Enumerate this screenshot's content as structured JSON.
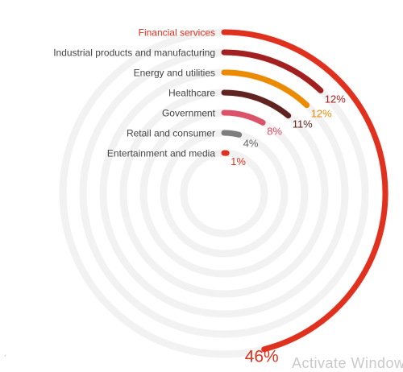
{
  "chart_data": {
    "type": "radial-bar",
    "scale_max": 100,
    "grid": true,
    "series": [
      {
        "name": "Financial services",
        "value": 46,
        "label": "46%",
        "color": "#e0301e"
      },
      {
        "name": "Industrial products and manufacturing",
        "value": 12,
        "label": "12%",
        "color": "#a32020"
      },
      {
        "name": "Energy and utilities",
        "value": 12,
        "label": "12%",
        "color": "#eb8c00"
      },
      {
        "name": "Healthcare",
        "value": 11,
        "label": "11%",
        "color": "#602320"
      },
      {
        "name": "Government",
        "value": 8,
        "label": "8%",
        "color": "#db536a"
      },
      {
        "name": "Retail and consumer",
        "value": 4,
        "label": "4%",
        "color": "#7d7d7d"
      },
      {
        "name": "Entertainment and media",
        "value": 1,
        "label": "1%",
        "color": "#e0301e"
      }
    ]
  },
  "overlay": {
    "watermark_text": "Activate Windows",
    "corner_text": "´"
  }
}
